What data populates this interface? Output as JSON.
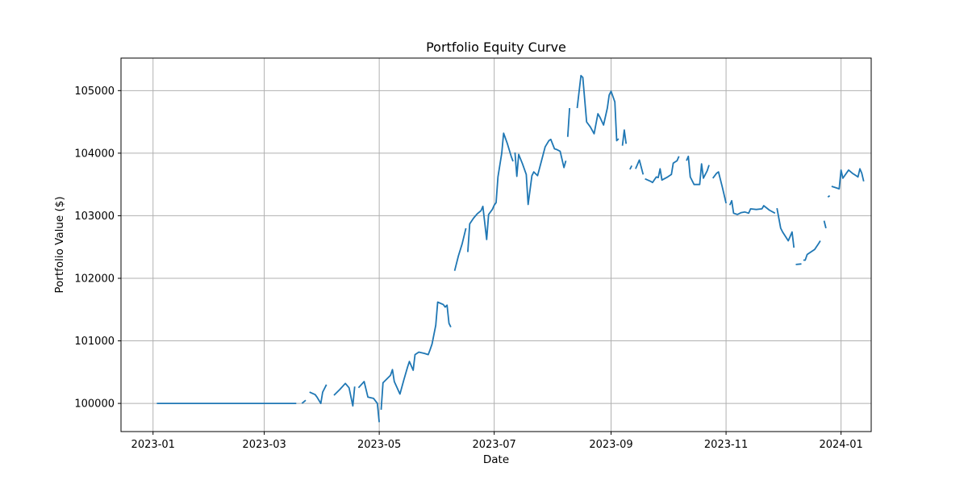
{
  "chart_data": {
    "type": "line",
    "title": "Portfolio Equity Curve",
    "xlabel": "Date",
    "ylabel": "Portfolio Value ($)",
    "grid": true,
    "x_tick_labels": [
      "2023-01",
      "2023-03",
      "2023-05",
      "2023-07",
      "2023-09",
      "2023-11",
      "2024-01"
    ],
    "x_ticks": [
      "2023-01-01",
      "2023-03-01",
      "2023-05-01",
      "2023-07-01",
      "2023-09-01",
      "2023-11-01",
      "2024-01-01"
    ],
    "xlim": [
      "2022-12-15",
      "2024-01-17"
    ],
    "y_tick_labels": [
      "100000",
      "101000",
      "102000",
      "103000",
      "104000",
      "105000"
    ],
    "y_ticks": [
      100000,
      101000,
      102000,
      103000,
      104000,
      105000
    ],
    "ylim": [
      99550,
      105520
    ],
    "colors": {
      "series": "#1f77b4",
      "grid": "#b0b0b0"
    },
    "segments": [
      [
        [
          "2023-01-03",
          100000
        ],
        [
          "2023-03-18",
          100000
        ]
      ],
      [
        [
          "2023-03-21",
          100000
        ],
        [
          "2023-03-23",
          100050
        ]
      ],
      [
        [
          "2023-03-25",
          100180
        ],
        [
          "2023-03-28",
          100140
        ],
        [
          "2023-03-29",
          100100
        ],
        [
          "2023-03-31",
          100000
        ],
        [
          "2023-04-01",
          100180
        ],
        [
          "2023-04-03",
          100300
        ]
      ],
      [
        [
          "2023-04-07",
          100130
        ],
        [
          "2023-04-10",
          100220
        ],
        [
          "2023-04-13",
          100320
        ],
        [
          "2023-04-15",
          100250
        ],
        [
          "2023-04-17",
          99960
        ],
        [
          "2023-04-18",
          100270
        ]
      ],
      [
        [
          "2023-04-20",
          100250
        ],
        [
          "2023-04-23",
          100350
        ],
        [
          "2023-04-25",
          100100
        ],
        [
          "2023-04-28",
          100080
        ],
        [
          "2023-04-30",
          100000
        ],
        [
          "2023-05-01",
          99700
        ]
      ],
      [
        [
          "2023-05-02",
          99900
        ],
        [
          "2023-05-03",
          100330
        ],
        [
          "2023-05-07",
          100450
        ],
        [
          "2023-05-08",
          100540
        ],
        [
          "2023-05-09",
          100350
        ],
        [
          "2023-05-12",
          100150
        ],
        [
          "2023-05-14",
          100370
        ],
        [
          "2023-05-16",
          100580
        ],
        [
          "2023-05-17",
          100670
        ],
        [
          "2023-05-19",
          100530
        ],
        [
          "2023-05-20",
          100780
        ],
        [
          "2023-05-22",
          100820
        ],
        [
          "2023-05-25",
          100800
        ],
        [
          "2023-05-27",
          100780
        ],
        [
          "2023-05-28",
          100860
        ],
        [
          "2023-05-29",
          100950
        ],
        [
          "2023-05-31",
          101250
        ],
        [
          "2023-06-01",
          101620
        ],
        [
          "2023-06-04",
          101580
        ],
        [
          "2023-06-05",
          101540
        ],
        [
          "2023-06-06",
          101570
        ],
        [
          "2023-06-07",
          101280
        ],
        [
          "2023-06-08",
          101220
        ]
      ],
      [
        [
          "2023-06-10",
          102120
        ],
        [
          "2023-06-12",
          102360
        ],
        [
          "2023-06-14",
          102550
        ],
        [
          "2023-06-16",
          102800
        ]
      ],
      [
        [
          "2023-06-17",
          102420
        ],
        [
          "2023-06-18",
          102870
        ],
        [
          "2023-06-20",
          102960
        ],
        [
          "2023-06-22",
          103030
        ],
        [
          "2023-06-24",
          103080
        ],
        [
          "2023-06-25",
          103150
        ],
        [
          "2023-06-27",
          102620
        ],
        [
          "2023-06-28",
          103020
        ],
        [
          "2023-06-30",
          103100
        ],
        [
          "2023-07-01",
          103170
        ],
        [
          "2023-07-02",
          103210
        ],
        [
          "2023-07-03",
          103620
        ],
        [
          "2023-07-05",
          104000
        ],
        [
          "2023-07-06",
          104320
        ],
        [
          "2023-07-08",
          104150
        ],
        [
          "2023-07-10",
          103950
        ],
        [
          "2023-07-11",
          103870
        ]
      ],
      [
        [
          "2023-07-12",
          104010
        ],
        [
          "2023-07-13",
          103630
        ],
        [
          "2023-07-14",
          103980
        ],
        [
          "2023-07-16",
          103830
        ],
        [
          "2023-07-18",
          103660
        ],
        [
          "2023-07-19",
          103180
        ],
        [
          "2023-07-21",
          103640
        ],
        [
          "2023-07-22",
          103700
        ],
        [
          "2023-07-24",
          103640
        ],
        [
          "2023-07-26",
          103870
        ],
        [
          "2023-07-28",
          104100
        ],
        [
          "2023-07-30",
          104200
        ],
        [
          "2023-07-31",
          104220
        ],
        [
          "2023-08-02",
          104070
        ],
        [
          "2023-08-03",
          104060
        ],
        [
          "2023-08-05",
          104030
        ],
        [
          "2023-08-07",
          103770
        ],
        [
          "2023-08-08",
          103880
        ]
      ],
      [
        [
          "2023-08-09",
          104260
        ],
        [
          "2023-08-10",
          104720
        ]
      ],
      [
        [
          "2023-08-14",
          104720
        ],
        [
          "2023-08-16",
          105240
        ],
        [
          "2023-08-17",
          105210
        ],
        [
          "2023-08-19",
          104500
        ],
        [
          "2023-08-21",
          104420
        ],
        [
          "2023-08-23",
          104310
        ],
        [
          "2023-08-25",
          104630
        ],
        [
          "2023-08-26",
          104580
        ],
        [
          "2023-08-28",
          104450
        ],
        [
          "2023-08-30",
          104720
        ],
        [
          "2023-08-31",
          104930
        ],
        [
          "2023-09-01",
          104990
        ],
        [
          "2023-09-03",
          104820
        ],
        [
          "2023-09-04",
          104200
        ],
        [
          "2023-09-05",
          104230
        ]
      ],
      [
        [
          "2023-09-07",
          104120
        ],
        [
          "2023-09-08",
          104370
        ],
        [
          "2023-09-09",
          104150
        ]
      ],
      [
        [
          "2023-09-11",
          103740
        ],
        [
          "2023-09-12",
          103800
        ]
      ],
      [
        [
          "2023-09-14",
          103750
        ],
        [
          "2023-09-16",
          103890
        ],
        [
          "2023-09-18",
          103660
        ]
      ],
      [
        [
          "2023-09-19",
          103590
        ],
        [
          "2023-09-22",
          103550
        ],
        [
          "2023-09-23",
          103530
        ],
        [
          "2023-09-25",
          103620
        ],
        [
          "2023-09-26",
          103610
        ],
        [
          "2023-09-27",
          103750
        ],
        [
          "2023-09-28",
          103570
        ],
        [
          "2023-10-01",
          103620
        ],
        [
          "2023-10-03",
          103660
        ],
        [
          "2023-10-04",
          103840
        ],
        [
          "2023-10-06",
          103880
        ],
        [
          "2023-10-07",
          103950
        ]
      ],
      [
        [
          "2023-10-11",
          103880
        ],
        [
          "2023-10-12",
          103950
        ],
        [
          "2023-10-13",
          103620
        ],
        [
          "2023-10-15",
          103500
        ],
        [
          "2023-10-18",
          103500
        ],
        [
          "2023-10-19",
          103830
        ],
        [
          "2023-10-20",
          103600
        ],
        [
          "2023-10-22",
          103720
        ],
        [
          "2023-10-23",
          103810
        ]
      ],
      [
        [
          "2023-10-25",
          103600
        ],
        [
          "2023-10-27",
          103680
        ],
        [
          "2023-10-28",
          103700
        ],
        [
          "2023-10-30",
          103460
        ],
        [
          "2023-11-01",
          103200
        ]
      ],
      [
        [
          "2023-11-03",
          103170
        ],
        [
          "2023-11-04",
          103240
        ],
        [
          "2023-11-05",
          103040
        ],
        [
          "2023-11-07",
          103020
        ],
        [
          "2023-11-09",
          103050
        ],
        [
          "2023-11-11",
          103060
        ],
        [
          "2023-11-13",
          103040
        ],
        [
          "2023-11-14",
          103110
        ],
        [
          "2023-11-17",
          103100
        ],
        [
          "2023-11-20",
          103110
        ],
        [
          "2023-11-21",
          103160
        ],
        [
          "2023-11-24",
          103090
        ],
        [
          "2023-11-27",
          103040
        ]
      ],
      [
        [
          "2023-11-28",
          103120
        ],
        [
          "2023-11-30",
          102800
        ],
        [
          "2023-12-01",
          102740
        ],
        [
          "2023-12-04",
          102600
        ],
        [
          "2023-12-06",
          102740
        ],
        [
          "2023-12-07",
          102490
        ]
      ],
      [
        [
          "2023-12-08",
          102220
        ],
        [
          "2023-12-11",
          102230
        ]
      ],
      [
        [
          "2023-12-12",
          102290
        ],
        [
          "2023-12-13",
          102290
        ],
        [
          "2023-12-14",
          102380
        ],
        [
          "2023-12-16",
          102420
        ],
        [
          "2023-12-18",
          102460
        ],
        [
          "2023-12-20",
          102550
        ],
        [
          "2023-12-21",
          102600
        ]
      ],
      [
        [
          "2023-12-23",
          102920
        ],
        [
          "2023-12-24",
          102800
        ]
      ],
      [
        [
          "2023-12-25",
          103300
        ],
        [
          "2023-12-26",
          103320
        ]
      ],
      [
        [
          "2023-12-27",
          103470
        ],
        [
          "2023-12-29",
          103450
        ],
        [
          "2023-12-31",
          103430
        ],
        [
          "2024-01-01",
          103730
        ],
        [
          "2024-01-02",
          103600
        ],
        [
          "2024-01-05",
          103730
        ],
        [
          "2024-01-07",
          103680
        ],
        [
          "2024-01-09",
          103640
        ],
        [
          "2024-01-10",
          103620
        ],
        [
          "2024-01-11",
          103750
        ],
        [
          "2024-01-12",
          103680
        ],
        [
          "2024-01-13",
          103550
        ]
      ]
    ]
  }
}
